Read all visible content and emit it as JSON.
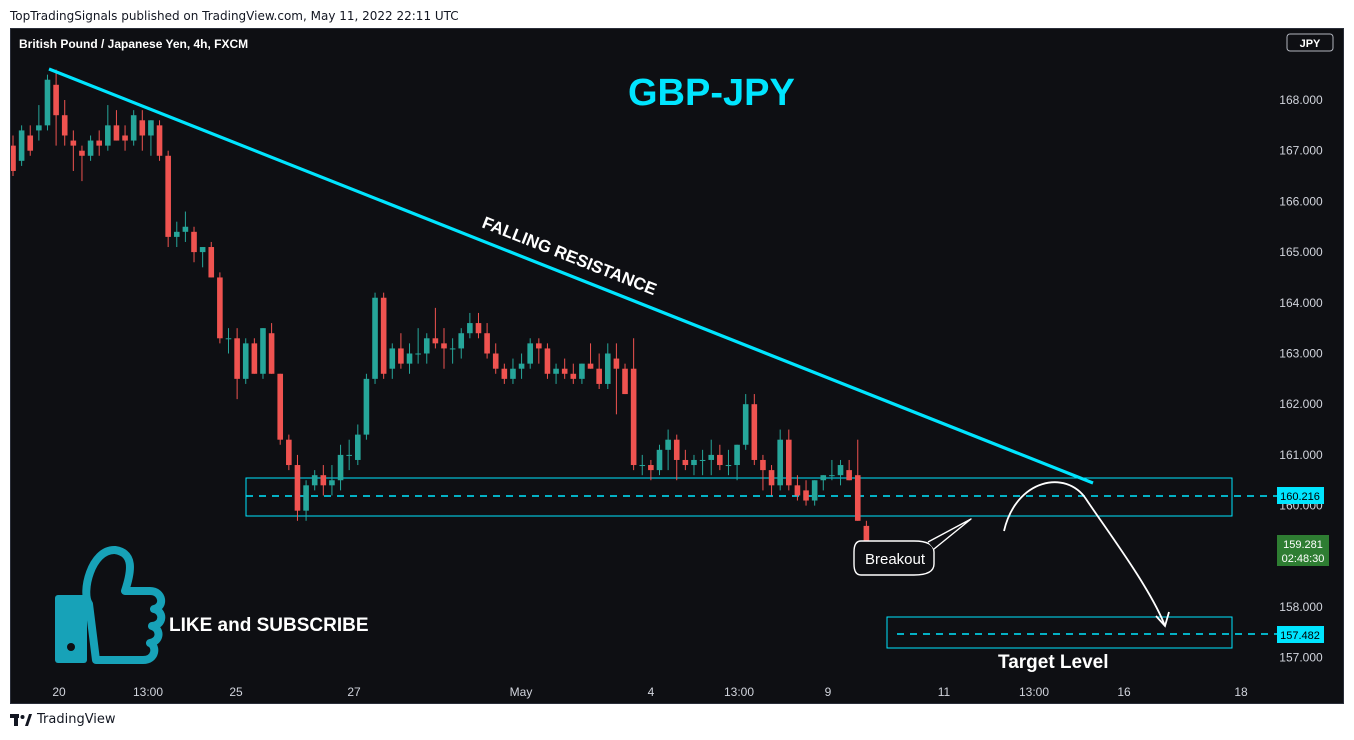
{
  "header": {
    "published": "TopTradingSignals published on TradingView.com, May 11, 2022 22:11 UTC"
  },
  "footer": {
    "brand": "TradingView"
  },
  "chart": {
    "symbol_title": "British Pound / Japanese Yen, 4h, FXCM",
    "currency_badge": "JPY",
    "big_title": "GBP-JPY",
    "trendline_label": "FALLING RESISTANCE",
    "breakout_label": "Breakout",
    "cta_label": "LIKE and SUBSCRIBE",
    "target_label": "Target Level",
    "colors": {
      "background": "#0e0f13",
      "up": "#26a69a",
      "down": "#ef5350",
      "accent": "#00e5ff",
      "thumb": "#17a2b8",
      "price_tag": "#2e7d32"
    }
  },
  "chart_data": {
    "type": "candlestick",
    "y_ticks": [
      "168.000",
      "167.000",
      "166.000",
      "165.000",
      "164.000",
      "163.000",
      "162.000",
      "161.000",
      "160.000",
      "158.000",
      "157.000"
    ],
    "x_ticks": [
      "20",
      "13:00",
      "25",
      "27",
      "May",
      "4",
      "13:00",
      "9",
      "11",
      "13:00",
      "16",
      "18"
    ],
    "ylim": [
      156.8,
      169.1
    ],
    "levels": [
      {
        "label": "160.216",
        "value": 160.216
      },
      {
        "label": "157.482",
        "value": 157.482
      }
    ],
    "current_price": {
      "label": "159.281",
      "countdown": "02:48:30",
      "value": 159.281
    },
    "candles": [
      [
        167.1,
        167.3,
        166.5,
        166.6
      ],
      [
        166.8,
        167.5,
        166.7,
        167.4
      ],
      [
        167.3,
        167.5,
        166.9,
        167.0
      ],
      [
        167.4,
        167.9,
        167.2,
        167.5
      ],
      [
        167.5,
        168.5,
        167.4,
        168.4
      ],
      [
        168.3,
        168.6,
        167.1,
        167.7
      ],
      [
        167.7,
        168.0,
        167.1,
        167.3
      ],
      [
        167.2,
        167.4,
        166.6,
        167.1
      ],
      [
        167.0,
        167.1,
        166.4,
        166.9
      ],
      [
        166.9,
        167.3,
        166.8,
        167.2
      ],
      [
        167.2,
        167.4,
        166.9,
        167.1
      ],
      [
        167.1,
        167.9,
        167.0,
        167.5
      ],
      [
        167.5,
        167.8,
        167.2,
        167.2
      ],
      [
        167.3,
        167.5,
        167.0,
        167.2
      ],
      [
        167.2,
        167.8,
        167.1,
        167.7
      ],
      [
        167.6,
        167.8,
        167.0,
        167.3
      ],
      [
        167.3,
        167.6,
        166.9,
        167.6
      ],
      [
        167.5,
        167.6,
        166.8,
        166.9
      ],
      [
        166.9,
        167.0,
        165.1,
        165.3
      ],
      [
        165.3,
        165.6,
        165.1,
        165.4
      ],
      [
        165.4,
        165.8,
        165.2,
        165.5
      ],
      [
        165.4,
        165.5,
        164.8,
        165.0
      ],
      [
        165.0,
        165.1,
        164.7,
        165.1
      ],
      [
        165.1,
        165.2,
        164.5,
        164.5
      ],
      [
        164.5,
        164.6,
        163.2,
        163.3
      ],
      [
        163.3,
        163.5,
        163.0,
        163.3
      ],
      [
        163.3,
        163.5,
        162.1,
        162.5
      ],
      [
        162.5,
        163.3,
        162.4,
        163.2
      ],
      [
        163.2,
        163.3,
        162.6,
        162.6
      ],
      [
        162.6,
        163.5,
        162.5,
        163.5
      ],
      [
        163.4,
        163.6,
        162.6,
        162.6
      ],
      [
        162.6,
        162.6,
        161.2,
        161.3
      ],
      [
        161.3,
        161.4,
        160.7,
        160.8
      ],
      [
        160.8,
        161.0,
        159.7,
        159.9
      ],
      [
        159.9,
        160.5,
        159.7,
        160.4
      ],
      [
        160.4,
        160.7,
        160.3,
        160.6
      ],
      [
        160.6,
        160.8,
        160.2,
        160.4
      ],
      [
        160.4,
        160.8,
        160.2,
        160.5
      ],
      [
        160.5,
        161.2,
        160.3,
        161.0
      ],
      [
        161.0,
        161.3,
        160.7,
        161.0
      ],
      [
        160.9,
        161.6,
        160.8,
        161.4
      ],
      [
        161.4,
        162.6,
        161.3,
        162.5
      ],
      [
        162.5,
        164.2,
        162.4,
        164.1
      ],
      [
        164.1,
        164.2,
        162.5,
        162.6
      ],
      [
        162.7,
        163.2,
        162.5,
        163.1
      ],
      [
        163.1,
        163.4,
        162.7,
        162.8
      ],
      [
        162.8,
        163.2,
        162.6,
        163.0
      ],
      [
        163.0,
        163.5,
        162.8,
        163.0
      ],
      [
        163.0,
        163.4,
        162.8,
        163.3
      ],
      [
        163.3,
        163.9,
        163.1,
        163.2
      ],
      [
        163.2,
        163.5,
        162.7,
        163.1
      ],
      [
        163.1,
        163.3,
        162.8,
        163.1
      ],
      [
        163.1,
        163.5,
        162.9,
        163.4
      ],
      [
        163.4,
        163.8,
        163.3,
        163.6
      ],
      [
        163.6,
        163.8,
        163.3,
        163.4
      ],
      [
        163.4,
        163.6,
        162.9,
        163.0
      ],
      [
        163.0,
        163.2,
        162.6,
        162.7
      ],
      [
        162.7,
        162.8,
        162.4,
        162.5
      ],
      [
        162.5,
        162.9,
        162.4,
        162.7
      ],
      [
        162.7,
        163.0,
        162.5,
        162.8
      ],
      [
        162.8,
        163.3,
        162.7,
        163.2
      ],
      [
        163.2,
        163.3,
        162.8,
        163.1
      ],
      [
        163.1,
        163.2,
        162.5,
        162.6
      ],
      [
        162.6,
        162.8,
        162.4,
        162.7
      ],
      [
        162.7,
        162.9,
        162.5,
        162.6
      ],
      [
        162.6,
        162.8,
        162.4,
        162.5
      ],
      [
        162.5,
        162.8,
        162.4,
        162.8
      ],
      [
        162.8,
        163.2,
        162.7,
        162.7
      ],
      [
        162.7,
        163.0,
        162.3,
        162.4
      ],
      [
        162.4,
        163.2,
        162.3,
        163.0
      ],
      [
        162.9,
        163.2,
        161.8,
        162.7
      ],
      [
        162.7,
        162.8,
        162.2,
        162.2
      ],
      [
        162.7,
        163.3,
        160.7,
        160.8
      ],
      [
        160.8,
        161.0,
        160.6,
        160.8
      ],
      [
        160.8,
        160.9,
        160.5,
        160.7
      ],
      [
        160.7,
        161.2,
        160.6,
        161.1
      ],
      [
        161.1,
        161.5,
        160.7,
        161.3
      ],
      [
        161.3,
        161.4,
        160.5,
        160.9
      ],
      [
        160.9,
        161.1,
        160.7,
        160.8
      ],
      [
        160.8,
        161.0,
        160.6,
        160.9
      ],
      [
        160.9,
        161.1,
        160.6,
        160.9
      ],
      [
        160.9,
        161.3,
        160.6,
        161.0
      ],
      [
        161.0,
        161.2,
        160.7,
        160.8
      ],
      [
        160.8,
        161.1,
        160.6,
        160.8
      ],
      [
        160.8,
        161.2,
        160.5,
        161.2
      ],
      [
        161.2,
        162.2,
        161.1,
        162.0
      ],
      [
        162.0,
        162.2,
        160.8,
        160.9
      ],
      [
        160.9,
        161.0,
        160.3,
        160.7
      ],
      [
        160.7,
        160.8,
        160.2,
        160.4
      ],
      [
        160.4,
        161.5,
        160.3,
        161.3
      ],
      [
        161.3,
        161.5,
        160.3,
        160.4
      ],
      [
        160.4,
        160.6,
        160.1,
        160.2
      ],
      [
        160.3,
        160.5,
        160.0,
        160.1
      ],
      [
        160.1,
        160.5,
        160.0,
        160.5
      ],
      [
        160.5,
        160.6,
        160.3,
        160.6
      ],
      [
        160.6,
        160.9,
        160.5,
        160.6
      ],
      [
        160.6,
        160.9,
        160.4,
        160.8
      ],
      [
        160.7,
        160.9,
        160.5,
        160.5
      ],
      [
        160.6,
        161.3,
        159.7,
        159.7
      ],
      [
        159.6,
        159.7,
        158.9,
        159.1
      ],
      [
        159.1,
        159.3,
        159.0,
        159.28
      ]
    ]
  }
}
